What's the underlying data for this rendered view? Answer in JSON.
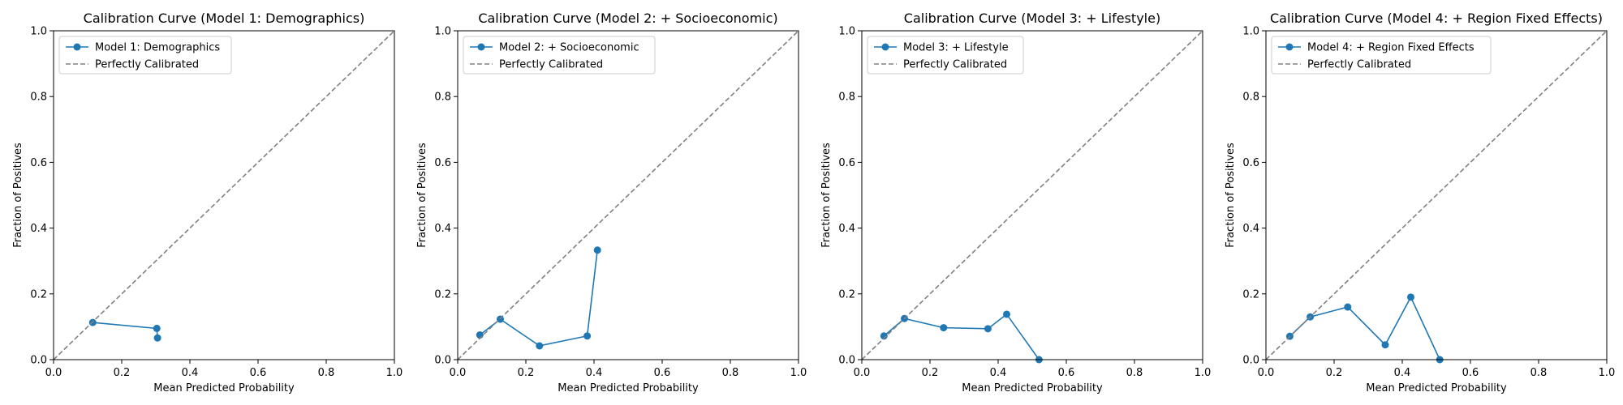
{
  "chart_data": [
    {
      "type": "line",
      "title": "Calibration Curve (Model 1: Demographics)",
      "xlabel": "Mean Predicted Probability",
      "ylabel": "Fraction of Positives",
      "xlim": [
        0.0,
        1.0
      ],
      "ylim": [
        0.0,
        1.0
      ],
      "xticks": [
        "0.0",
        "0.2",
        "0.4",
        "0.6",
        "0.8",
        "1.0"
      ],
      "yticks": [
        "0.0",
        "0.2",
        "0.4",
        "0.6",
        "0.8",
        "1.0"
      ],
      "grid": false,
      "legend_position": "upper-left",
      "series": [
        {
          "name": "Model 1: Demographics",
          "color": "#1f77b4",
          "marker": "circle",
          "x": [
            0.115,
            0.303,
            0.305
          ],
          "y": [
            0.113,
            0.095,
            0.066
          ]
        },
        {
          "name": "Perfectly Calibrated",
          "color": "#808080",
          "style": "dashed",
          "x": [
            0.0,
            1.0
          ],
          "y": [
            0.0,
            1.0
          ]
        }
      ]
    },
    {
      "type": "line",
      "title": "Calibration Curve (Model 2: + Socioeconomic)",
      "xlabel": "Mean Predicted Probability",
      "ylabel": "Fraction of Positives",
      "xlim": [
        0.0,
        1.0
      ],
      "ylim": [
        0.0,
        1.0
      ],
      "xticks": [
        "0.0",
        "0.2",
        "0.4",
        "0.6",
        "0.8",
        "1.0"
      ],
      "yticks": [
        "0.0",
        "0.2",
        "0.4",
        "0.6",
        "0.8",
        "1.0"
      ],
      "grid": false,
      "legend_position": "upper-left",
      "series": [
        {
          "name": "Model 2: + Socioeconomic",
          "color": "#1f77b4",
          "marker": "circle",
          "x": [
            0.065,
            0.125,
            0.24,
            0.38,
            0.41
          ],
          "y": [
            0.075,
            0.123,
            0.042,
            0.072,
            0.333
          ]
        },
        {
          "name": "Perfectly Calibrated",
          "color": "#808080",
          "style": "dashed",
          "x": [
            0.0,
            1.0
          ],
          "y": [
            0.0,
            1.0
          ]
        }
      ]
    },
    {
      "type": "line",
      "title": "Calibration Curve (Model 3: + Lifestyle)",
      "xlabel": "Mean Predicted Probability",
      "ylabel": "Fraction of Positives",
      "xlim": [
        0.0,
        1.0
      ],
      "ylim": [
        0.0,
        1.0
      ],
      "xticks": [
        "0.0",
        "0.2",
        "0.4",
        "0.6",
        "0.8",
        "1.0"
      ],
      "yticks": [
        "0.0",
        "0.2",
        "0.4",
        "0.6",
        "0.8",
        "1.0"
      ],
      "grid": false,
      "legend_position": "upper-left",
      "series": [
        {
          "name": "Model 3: + Lifestyle",
          "color": "#1f77b4",
          "marker": "circle",
          "x": [
            0.065,
            0.125,
            0.24,
            0.37,
            0.425,
            0.52
          ],
          "y": [
            0.072,
            0.125,
            0.097,
            0.094,
            0.138,
            0.0
          ]
        },
        {
          "name": "Perfectly Calibrated",
          "color": "#808080",
          "style": "dashed",
          "x": [
            0.0,
            1.0
          ],
          "y": [
            0.0,
            1.0
          ]
        }
      ]
    },
    {
      "type": "line",
      "title": "Calibration Curve (Model 4: + Region Fixed Effects)",
      "xlabel": "Mean Predicted Probability",
      "ylabel": "Fraction of Positives",
      "xlim": [
        0.0,
        1.0
      ],
      "ylim": [
        0.0,
        1.0
      ],
      "xticks": [
        "0.0",
        "0.2",
        "0.4",
        "0.6",
        "0.8",
        "1.0"
      ],
      "yticks": [
        "0.0",
        "0.2",
        "0.4",
        "0.6",
        "0.8",
        "1.0"
      ],
      "grid": false,
      "legend_position": "upper-left",
      "series": [
        {
          "name": "Model 4: + Region Fixed Effects",
          "color": "#1f77b4",
          "marker": "circle",
          "x": [
            0.07,
            0.13,
            0.24,
            0.35,
            0.425,
            0.51
          ],
          "y": [
            0.071,
            0.13,
            0.16,
            0.045,
            0.19,
            0.0
          ]
        },
        {
          "name": "Perfectly Calibrated",
          "color": "#808080",
          "style": "dashed",
          "x": [
            0.0,
            1.0
          ],
          "y": [
            0.0,
            1.0
          ]
        }
      ]
    }
  ]
}
